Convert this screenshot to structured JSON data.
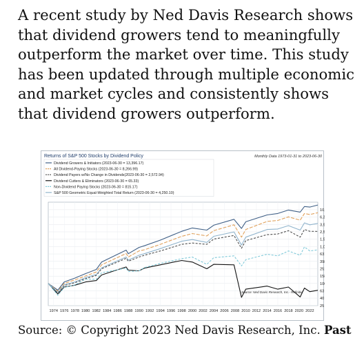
{
  "intro_text": "A recent study by Ned Davis Research shows that dividend growers tend to meaningfully outperform the market over time. This study has been updated through multiple economic and market cycles and consistently shows that dividend growers outperform.",
  "source": {
    "prefix": "Source: © Copyright 2023 Ned Davis Research, Inc.",
    "bold": "Past"
  },
  "chart_data": {
    "type": "line",
    "title": "Returns of S&P 500 Stocks by Dividend Policy",
    "subtitle": "Monthly Data 1973-01-31 to 2023-06-30",
    "credit": "Source:  Ned Davis Research, Inc.- Refinitiv",
    "y_scale": "log",
    "ylim": [
      25,
      16000
    ],
    "y_ticks": [
      25,
      40,
      63,
      100,
      158,
      251,
      398,
      631,
      1000,
      1585,
      2512,
      3981,
      6310,
      10000
    ],
    "y_tick_labels": [
      "25",
      "40",
      "63",
      "100",
      "158",
      "251",
      "398",
      "631",
      "1,000",
      "1,585",
      "2,512",
      "3,981",
      "6,310",
      "10,000"
    ],
    "x_ticks": [
      1974,
      1976,
      1978,
      1980,
      1982,
      1984,
      1986,
      1988,
      1990,
      1992,
      1994,
      1996,
      1998,
      2000,
      2002,
      2004,
      2006,
      2008,
      2010,
      2012,
      2014,
      2016,
      2018,
      2020,
      2022
    ],
    "xlim": [
      1973,
      2023.5
    ],
    "grid": true,
    "legend_placement": "top-left",
    "series": [
      {
        "name": "Dividend Growers & Initiators (2023-06-30 = 13,396.17)",
        "color": "#3f5f86",
        "dash": "solid",
        "x": [
          1973,
          1974.8,
          1976,
          1978,
          1980,
          1982,
          1983,
          1987.6,
          1988,
          1990,
          1991,
          1994,
          1998,
          2000,
          2002.7,
          2004,
          2007.8,
          2009.2,
          2010,
          2014,
          2016,
          2018,
          2020.2,
          2021,
          2022,
          2023.5
        ],
        "y": [
          100,
          66,
          110,
          140,
          185,
          240,
          380,
          800,
          640,
          950,
          1050,
          1500,
          2600,
          3200,
          2800,
          3800,
          5500,
          3100,
          4700,
          7200,
          7900,
          9800,
          8600,
          12200,
          11800,
          13396
        ]
      },
      {
        "name": "All Dividend-Paying Stocks (2023-06-30 = 8,266.99)",
        "color": "#e0a05a",
        "dash": "5,2",
        "x": [
          1973,
          1974.8,
          1976,
          1978,
          1980,
          1982,
          1983,
          1987.6,
          1988,
          1990,
          1991,
          1994,
          1998,
          2000,
          2002.7,
          2004,
          2007.8,
          2009.2,
          2010,
          2014,
          2016,
          2018,
          2020.2,
          2021,
          2022,
          2023.5
        ],
        "y": [
          100,
          62,
          100,
          125,
          160,
          205,
          320,
          650,
          520,
          760,
          820,
          1150,
          1900,
          2250,
          1950,
          2700,
          3900,
          1800,
          2900,
          4800,
          5100,
          6400,
          5200,
          7900,
          7400,
          8267
        ]
      },
      {
        "name": "Dividend Payers w/No Change in Dividends(2023-06-30 = 2,572.94)",
        "color": "#4d4d4d",
        "dash": "3,2",
        "x": [
          1973,
          1974.8,
          1976,
          1978,
          1980,
          1982,
          1983,
          1987.6,
          1988,
          1990,
          1991,
          1994,
          1998,
          2000,
          2002.7,
          2004,
          2007.8,
          2009.2,
          2010,
          2014,
          2016,
          2018,
          2020.2,
          2021,
          2022,
          2023.5
        ],
        "y": [
          100,
          56,
          88,
          105,
          135,
          165,
          250,
          480,
          400,
          520,
          580,
          760,
          1150,
          1250,
          1150,
          1600,
          2000,
          900,
          1450,
          2100,
          2200,
          2700,
          1800,
          2900,
          2600,
          2573
        ]
      },
      {
        "name": "Dividend Cutters & Eliminators (2023-06-30 = 65.33)",
        "color": "#111111",
        "dash": "solid",
        "x": [
          1973,
          1974.8,
          1976,
          1978,
          1980,
          1982,
          1983,
          1987.6,
          1988,
          1990,
          1991,
          1994,
          1998,
          2000,
          2002.7,
          2004,
          2007.8,
          2009.2,
          2010,
          2014,
          2016,
          2018,
          2020.2,
          2021,
          2022,
          2023.5
        ],
        "y": [
          100,
          52,
          80,
          90,
          110,
          120,
          170,
          280,
          230,
          220,
          260,
          320,
          420,
          380,
          250,
          330,
          320,
          42,
          70,
          85,
          70,
          80,
          43,
          75,
          60,
          65.33
        ]
      },
      {
        "name": "Non-Dividend Paying Stocks (2023-06-30 = 815.17)",
        "color": "#7ec9d9",
        "dash": "3,2",
        "x": [
          1973,
          1974.8,
          1976,
          1978,
          1980,
          1982,
          1983,
          1987.6,
          1988,
          1990,
          1991,
          1994,
          1998,
          2000,
          2002.7,
          2004,
          2007.8,
          2009.2,
          2010,
          2014,
          2016,
          2018,
          2020.2,
          2021,
          2022,
          2023.5
        ],
        "y": [
          100,
          48,
          78,
          92,
          130,
          130,
          195,
          260,
          210,
          220,
          270,
          350,
          470,
          520,
          330,
          500,
          560,
          300,
          440,
          620,
          560,
          760,
          580,
          980,
          760,
          815
        ]
      },
      {
        "name": "S&P 500 Geometric Equal-Weighted Total Return (2023-06-30 = 4,250.10)",
        "color": "#8fb3cc",
        "dash": "solid",
        "x": [
          1973,
          1974.8,
          1976,
          1978,
          1980,
          1982,
          1983,
          1987.6,
          1988,
          1990,
          1991,
          1994,
          1998,
          2000,
          2002.7,
          2004,
          2007.8,
          2009.2,
          2010,
          2014,
          2016,
          2018,
          2020.2,
          2021,
          2022,
          2023.5
        ],
        "y": [
          100,
          58,
          92,
          110,
          145,
          175,
          265,
          520,
          430,
          580,
          640,
          880,
          1400,
          1550,
          1300,
          1900,
          2500,
          1100,
          1800,
          2900,
          3000,
          3700,
          2800,
          4400,
          3900,
          4250
        ]
      }
    ]
  }
}
